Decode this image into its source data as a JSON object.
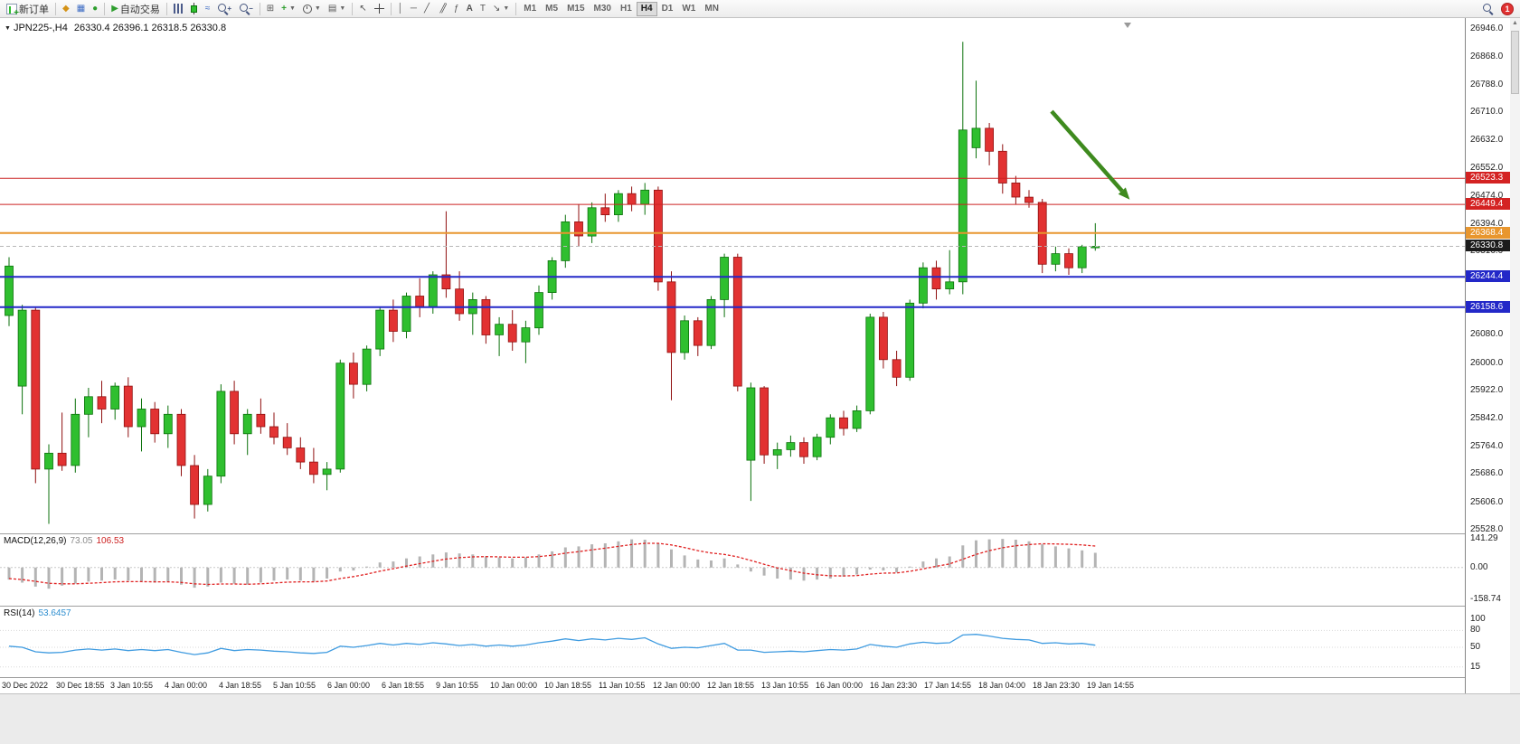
{
  "toolbar": {
    "new_order_label": "新订单",
    "auto_trading_label": "自动交易",
    "timeframes": [
      "M1",
      "M5",
      "M15",
      "M30",
      "H1",
      "H4",
      "D1",
      "W1",
      "MN"
    ],
    "active_timeframe": "H4",
    "notification_count": "1"
  },
  "chart_header": {
    "symbol": "JPN225-,H4",
    "ohlc": "26330.4 26396.1 26318.5 26330.8"
  },
  "macd_panel": {
    "title": "MACD(12,26,9)",
    "value_main": "73.05",
    "value_signal": "106.53"
  },
  "rsi_panel": {
    "title": "RSI(14)",
    "value": "53.6457"
  },
  "price_axis": {
    "ticks": [
      "26946.0",
      "26868.0",
      "26788.0",
      "26710.0",
      "26632.0",
      "26552.0",
      "26474.0",
      "26394.0",
      "26316.0",
      "26238.0",
      "26158.0",
      "26080.0",
      "26000.0",
      "25922.0",
      "25842.0",
      "25764.0",
      "25686.0",
      "25606.0",
      "25528.0"
    ]
  },
  "levels": [
    {
      "label": "26523.3",
      "price": 26523.3,
      "line": "#cc2222",
      "tag": "#d42222",
      "width": 1
    },
    {
      "label": "26449.4",
      "price": 26449.4,
      "line": "#cc2222",
      "tag": "#d42222",
      "width": 1
    },
    {
      "label": "26368.4",
      "price": 26368.4,
      "line": "#e8962e",
      "tag": "#e8962e",
      "width": 2
    },
    {
      "label": "26330.8",
      "price": 26330.8,
      "line": "#b8b8b8",
      "tag": "#1c1c1c",
      "width": 1,
      "dash": "4,3"
    },
    {
      "label": "26244.4",
      "price": 26244.4,
      "line": "#2328c8",
      "tag": "#2328c8",
      "width": 2
    },
    {
      "label": "26158.6",
      "price": 26158.6,
      "line": "#2328c8",
      "tag": "#2328c8",
      "width": 2
    }
  ],
  "annotation_arrow": {
    "color": "#3e8a1e",
    "from": {
      "index": 78.7,
      "price": 26713
    },
    "to": {
      "index": 84.6,
      "price": 26463
    }
  },
  "chart_data": [
    {
      "type": "candlestick",
      "symbol": "JPN225-",
      "timeframe": "H4",
      "ohlc_display": {
        "open": "26330.4",
        "high": "26396.1",
        "low": "26318.5",
        "close": "26330.8"
      },
      "y_range": [
        25518,
        26977
      ],
      "colors": {
        "up": "#2fbf2f",
        "down": "#e23232",
        "up_border": "#0c720c",
        "down_border": "#8f0f0f"
      },
      "x_labels": [
        "30 Dec 2022",
        "30 Dec 18:55",
        "3 Jan 10:55",
        "4 Jan 00:00",
        "4 Jan 18:55",
        "5 Jan 10:55",
        "6 Jan 00:00",
        "6 Jan 18:55",
        "9 Jan 10:55",
        "10 Jan 00:00",
        "10 Jan 18:55",
        "11 Jan 10:55",
        "12 Jan 00:00",
        "12 Jan 18:55",
        "13 Jan 10:55",
        "16 Jan 00:00",
        "16 Jan 23:30",
        "17 Jan 14:55",
        "18 Jan 04:00",
        "18 Jan 23:30",
        "19 Jan 14:55"
      ],
      "candles": [
        [
          26135,
          26300,
          26105,
          26275
        ],
        [
          25935,
          26165,
          25855,
          26150
        ],
        [
          26150,
          26160,
          25660,
          25700
        ],
        [
          25700,
          25770,
          25545,
          25745
        ],
        [
          25745,
          25860,
          25695,
          25710
        ],
        [
          25710,
          25900,
          25690,
          25855
        ],
        [
          25855,
          25930,
          25790,
          25905
        ],
        [
          25905,
          25950,
          25830,
          25870
        ],
        [
          25870,
          25945,
          25840,
          25935
        ],
        [
          25935,
          25960,
          25790,
          25820
        ],
        [
          25820,
          25900,
          25750,
          25870
        ],
        [
          25870,
          25890,
          25775,
          25800
        ],
        [
          25800,
          25880,
          25760,
          25855
        ],
        [
          25855,
          25870,
          25680,
          25710
        ],
        [
          25710,
          25740,
          25560,
          25600
        ],
        [
          25600,
          25700,
          25580,
          25680
        ],
        [
          25680,
          25940,
          25660,
          25920
        ],
        [
          25920,
          25950,
          25770,
          25800
        ],
        [
          25800,
          25870,
          25740,
          25855
        ],
        [
          25855,
          25900,
          25800,
          25820
        ],
        [
          25820,
          25860,
          25770,
          25790
        ],
        [
          25790,
          25830,
          25740,
          25760
        ],
        [
          25760,
          25790,
          25700,
          25720
        ],
        [
          25720,
          25760,
          25660,
          25685
        ],
        [
          25685,
          25720,
          25640,
          25700
        ],
        [
          25700,
          26010,
          25690,
          26000
        ],
        [
          26000,
          26030,
          25900,
          25940
        ],
        [
          25940,
          26050,
          25920,
          26040
        ],
        [
          26040,
          26160,
          26020,
          26150
        ],
        [
          26150,
          26180,
          26060,
          26090
        ],
        [
          26090,
          26200,
          26070,
          26190
        ],
        [
          26190,
          26240,
          26130,
          26160
        ],
        [
          26160,
          26260,
          26140,
          26250
        ],
        [
          26250,
          26430,
          26185,
          26210
        ],
        [
          26210,
          26260,
          26120,
          26140
        ],
        [
          26140,
          26200,
          26080,
          26180
        ],
        [
          26180,
          26190,
          26055,
          26080
        ],
        [
          26080,
          26130,
          26020,
          26110
        ],
        [
          26110,
          26150,
          26035,
          26060
        ],
        [
          26060,
          26120,
          26000,
          26100
        ],
        [
          26100,
          26220,
          26080,
          26200
        ],
        [
          26200,
          26300,
          26180,
          26290
        ],
        [
          26290,
          26420,
          26270,
          26400
        ],
        [
          26400,
          26450,
          26330,
          26360
        ],
        [
          26360,
          26455,
          26340,
          26440
        ],
        [
          26440,
          26480,
          26400,
          26420
        ],
        [
          26420,
          26490,
          26400,
          26480
        ],
        [
          26480,
          26500,
          26430,
          26450
        ],
        [
          26450,
          26510,
          26420,
          26490
        ],
        [
          26490,
          26500,
          26205,
          26230
        ],
        [
          26230,
          26260,
          25895,
          26030
        ],
        [
          26030,
          26135,
          26010,
          26120
        ],
        [
          26120,
          26130,
          26020,
          26050
        ],
        [
          26050,
          26190,
          26040,
          26180
        ],
        [
          26180,
          26310,
          26130,
          26300
        ],
        [
          26300,
          26310,
          25920,
          25935
        ],
        [
          25725,
          25945,
          25610,
          25930
        ],
        [
          25930,
          25935,
          25715,
          25740
        ],
        [
          25740,
          25775,
          25700,
          25755
        ],
        [
          25755,
          25795,
          25735,
          25775
        ],
        [
          25775,
          25790,
          25715,
          25735
        ],
        [
          25735,
          25800,
          25725,
          25790
        ],
        [
          25790,
          25855,
          25770,
          25845
        ],
        [
          25845,
          25865,
          25795,
          25815
        ],
        [
          25815,
          25880,
          25805,
          25865
        ],
        [
          25865,
          26140,
          25855,
          26130
        ],
        [
          26130,
          26145,
          25985,
          26010
        ],
        [
          26010,
          26035,
          25935,
          25960
        ],
        [
          25960,
          26180,
          25950,
          26170
        ],
        [
          26170,
          26285,
          26155,
          26270
        ],
        [
          26270,
          26290,
          26180,
          26210
        ],
        [
          26210,
          26320,
          26195,
          26230
        ],
        [
          26230,
          26910,
          26195,
          26660
        ],
        [
          26610,
          26800,
          26580,
          26665
        ],
        [
          26665,
          26680,
          26560,
          26600
        ],
        [
          26600,
          26620,
          26480,
          26510
        ],
        [
          26510,
          26530,
          26450,
          26470
        ],
        [
          26470,
          26490,
          26440,
          26455
        ],
        [
          26455,
          26465,
          26255,
          26280
        ],
        [
          26280,
          26330,
          26260,
          26310
        ],
        [
          26310,
          26325,
          26250,
          26270
        ],
        [
          26270,
          26335,
          26255,
          26330
        ],
        [
          26330.4,
          26396.1,
          26318.5,
          26330.8
        ]
      ]
    },
    {
      "type": "bar",
      "name": "MACD(12,26,9)",
      "y_range": [
        -185,
        165
      ],
      "ticks": [
        "141.29",
        "0.00",
        "-158.74"
      ],
      "histogram_color": "#b4b4b4",
      "signal_color": "#e02020",
      "values": [
        -60,
        -75,
        -95,
        -105,
        -90,
        -80,
        -70,
        -65,
        -60,
        -65,
        -70,
        -75,
        -70,
        -85,
        -100,
        -95,
        -75,
        -80,
        -85,
        -75,
        -65,
        -60,
        -65,
        -70,
        -55,
        -20,
        -15,
        5,
        25,
        30,
        45,
        55,
        65,
        75,
        70,
        65,
        55,
        50,
        45,
        50,
        65,
        80,
        100,
        105,
        115,
        120,
        130,
        140,
        138,
        120,
        90,
        60,
        40,
        35,
        45,
        15,
        -20,
        -40,
        -55,
        -60,
        -65,
        -60,
        -55,
        -45,
        -35,
        -10,
        -15,
        -25,
        5,
        30,
        45,
        55,
        110,
        135,
        140,
        142,
        138,
        130,
        115,
        105,
        95,
        85,
        73.05
      ],
      "signal": [
        -55,
        -60,
        -69,
        -78,
        -81,
        -81,
        -78,
        -75,
        -71,
        -70,
        -70,
        -71,
        -71,
        -74,
        -81,
        -84,
        -82,
        -82,
        -83,
        -81,
        -77,
        -73,
        -71,
        -71,
        -67,
        -55,
        -45,
        -33,
        -18,
        -6,
        7,
        19,
        31,
        42,
        49,
        53,
        54,
        53,
        51,
        51,
        54,
        61,
        71,
        79,
        88,
        96,
        105,
        114,
        120,
        120,
        112,
        99,
        84,
        72,
        65,
        53,
        35,
        16,
        -2,
        -16,
        -28,
        -36,
        -41,
        -42,
        -40,
        -33,
        -28,
        -27,
        -19,
        -7,
        6,
        18,
        41,
        65,
        84,
        98,
        108,
        114,
        118,
        117,
        115,
        112,
        106.53
      ]
    },
    {
      "type": "line",
      "name": "RSI(14)",
      "y_range": [
        0,
        100
      ],
      "ticks": [
        "100",
        "80",
        "50",
        "15"
      ],
      "level_lines": [
        80,
        50,
        15
      ],
      "line_color": "#3f9be0",
      "values": [
        52,
        50,
        42,
        40,
        41,
        45,
        47,
        45,
        47,
        44,
        46,
        44,
        46,
        41,
        37,
        40,
        48,
        44,
        46,
        45,
        43,
        42,
        40,
        39,
        41,
        52,
        50,
        53,
        57,
        54,
        57,
        55,
        58,
        56,
        53,
        55,
        52,
        54,
        52,
        54,
        58,
        61,
        65,
        62,
        65,
        63,
        66,
        64,
        67,
        56,
        48,
        50,
        49,
        53,
        57,
        45,
        45,
        41,
        42,
        43,
        42,
        44,
        46,
        45,
        47,
        55,
        52,
        50,
        56,
        59,
        57,
        58,
        72,
        73,
        70,
        66,
        64,
        63,
        57,
        58,
        56,
        57,
        53.6457
      ]
    }
  ]
}
